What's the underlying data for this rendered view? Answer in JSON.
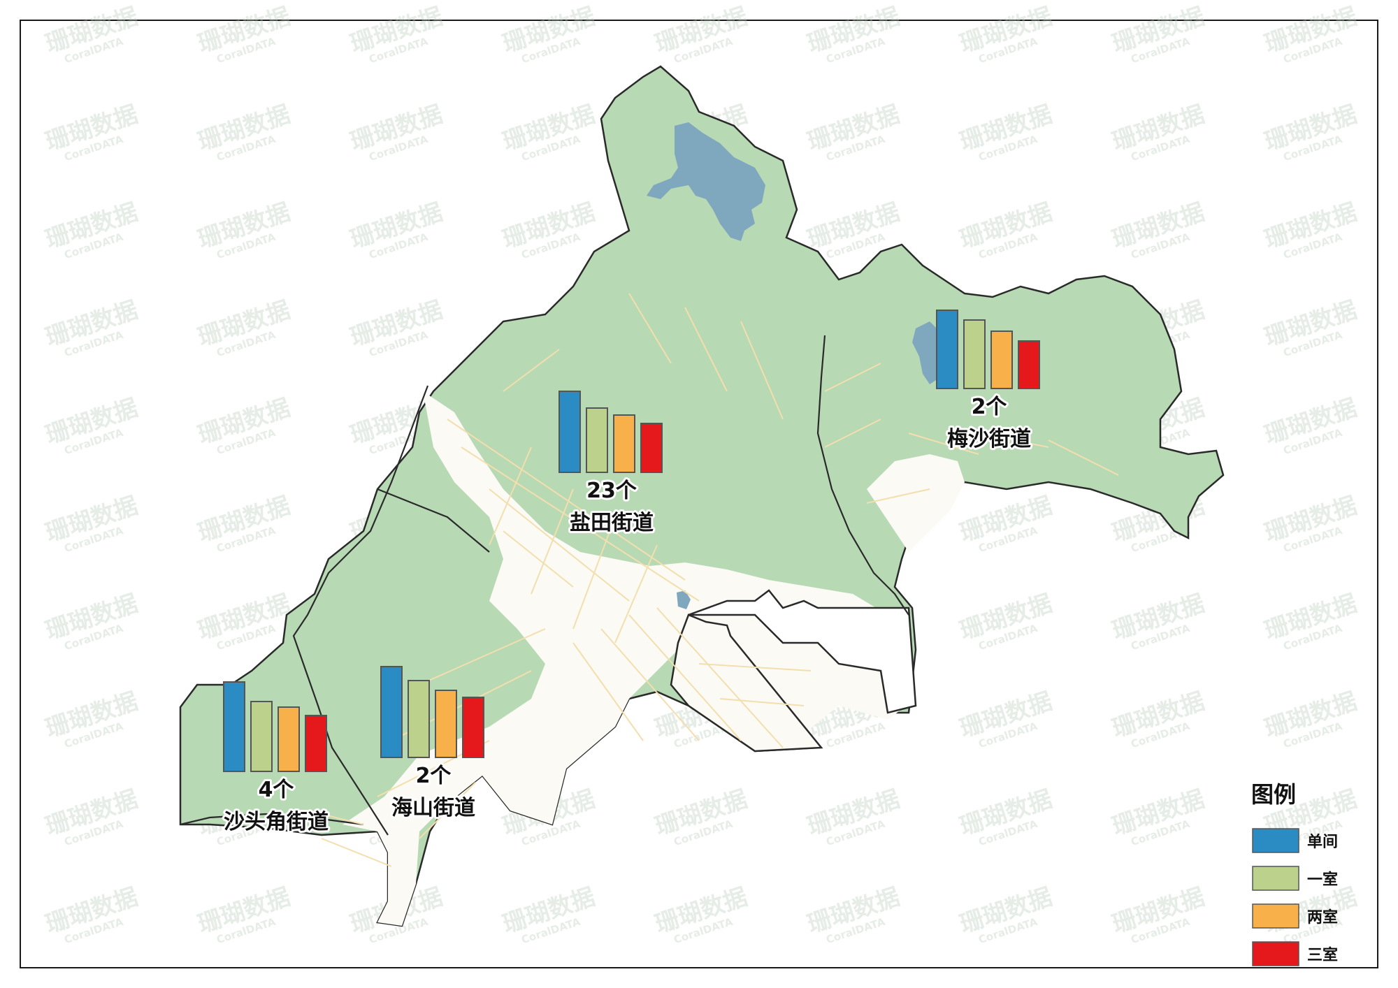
{
  "map": {
    "watermark": {
      "cn": "珊瑚数据",
      "en": "CoralDATA"
    },
    "colors": {
      "land_green": "#b7d9b4",
      "urban": "#fbfaf4",
      "road": "#f3dfae",
      "water": "#7fa8bf",
      "boundary": "#2a2a2a"
    },
    "districts": [
      {
        "name": "盐田街道",
        "count_label": "23个"
      },
      {
        "name": "梅沙街道",
        "count_label": "2个"
      },
      {
        "name": "沙头角街道",
        "count_label": "4个"
      },
      {
        "name": "海山街道",
        "count_label": "2个"
      }
    ],
    "legend": {
      "title": "图例",
      "items": [
        {
          "label": "单间",
          "color": "#2b8cc4"
        },
        {
          "label": "一室",
          "color": "#bcd28c"
        },
        {
          "label": "两室",
          "color": "#f7b04a"
        },
        {
          "label": "三室",
          "color": "#e5191b"
        }
      ]
    }
  }
}
